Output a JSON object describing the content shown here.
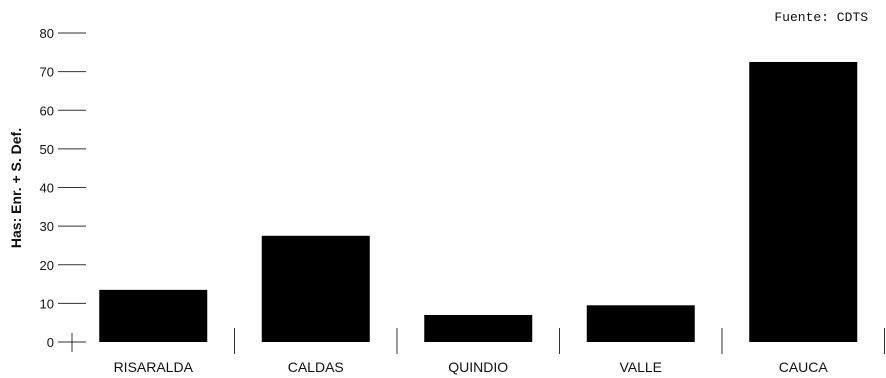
{
  "chart_data": {
    "type": "bar",
    "categories": [
      "RISARALDA",
      "CALDAS",
      "QUINDIO",
      "VALLE",
      "CAUCA"
    ],
    "values": [
      13.5,
      27.5,
      7,
      9.5,
      72.5
    ],
    "title": "",
    "xlabel": "",
    "ylabel": "Has: Enr. + S. Def.",
    "ylim": [
      0,
      80
    ],
    "yticks": [
      "0",
      "10",
      "20",
      "30",
      "40",
      "50",
      "60",
      "70",
      "80"
    ],
    "annotation": "Fuente: CDTS",
    "bar_color": "#000000",
    "grid": false,
    "legend": "none"
  }
}
